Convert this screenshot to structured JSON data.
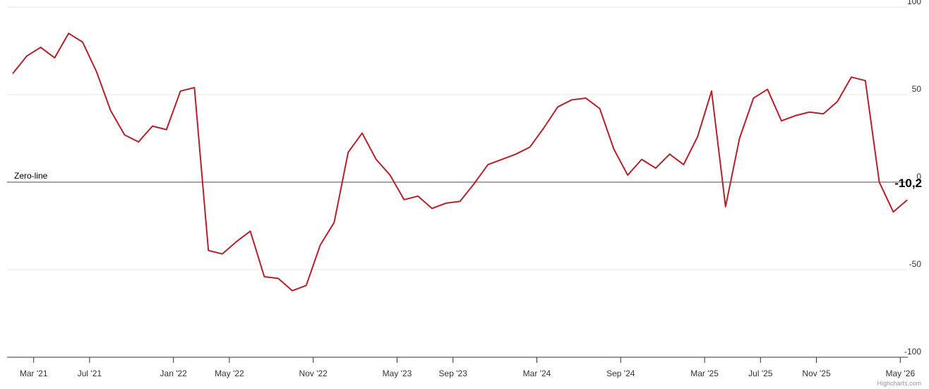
{
  "chart_data": {
    "type": "line",
    "categories": [
      null,
      null,
      "Mar '21",
      null,
      null,
      null,
      "Jul '21",
      null,
      null,
      null,
      null,
      null,
      "Jan '22",
      null,
      null,
      null,
      "May '22",
      null,
      null,
      null,
      null,
      null,
      "Nov '22",
      null,
      null,
      null,
      null,
      null,
      "May '23",
      null,
      null,
      null,
      "Sep '23",
      null,
      null,
      null,
      null,
      null,
      "Mar '24",
      null,
      null,
      null,
      null,
      null,
      "Sep '24",
      null,
      null,
      null,
      null,
      null,
      "Mar '25",
      null,
      null,
      null,
      "Jul '25",
      null,
      null,
      null,
      "Nov '25",
      null,
      null,
      null,
      null,
      null,
      "May '26"
    ],
    "values": [
      62,
      72,
      77,
      71,
      85,
      80,
      63,
      41,
      27,
      23,
      32,
      30,
      52,
      54,
      -39,
      -41,
      -34,
      -28,
      -54,
      -55,
      -62,
      -59,
      -36,
      -23,
      17,
      28,
      13,
      4,
      -10,
      -8,
      -15,
      -12,
      -11,
      -1,
      10,
      13,
      16,
      20,
      31,
      43,
      47,
      48,
      42,
      19,
      4,
      13,
      8,
      16,
      10,
      26,
      52,
      -14,
      25,
      48,
      53,
      35,
      38,
      40,
      39,
      46,
      60,
      58,
      0,
      -17,
      -10.2
    ],
    "value_labels": [
      null,
      null,
      null,
      null,
      null,
      null,
      null,
      null,
      null,
      null,
      null,
      null,
      null,
      null,
      null,
      null,
      null,
      null,
      null,
      null,
      null,
      null,
      null,
      null,
      null,
      null,
      null,
      null,
      null,
      null,
      null,
      null,
      null,
      null,
      null,
      null,
      null,
      null,
      null,
      null,
      null,
      null,
      null,
      null,
      null,
      null,
      null,
      null,
      null,
      null,
      null,
      null,
      null,
      null,
      null,
      null,
      null,
      null,
      null,
      null,
      null,
      null,
      null,
      null,
      "-10,2"
    ],
    "color": "#b5202a",
    "ylim": [
      -100,
      100
    ],
    "yticks": [
      -100,
      -50,
      0,
      50,
      100
    ],
    "grid": true,
    "zero_line_label": "Zero-line",
    "credits": "Highcharts.com"
  }
}
